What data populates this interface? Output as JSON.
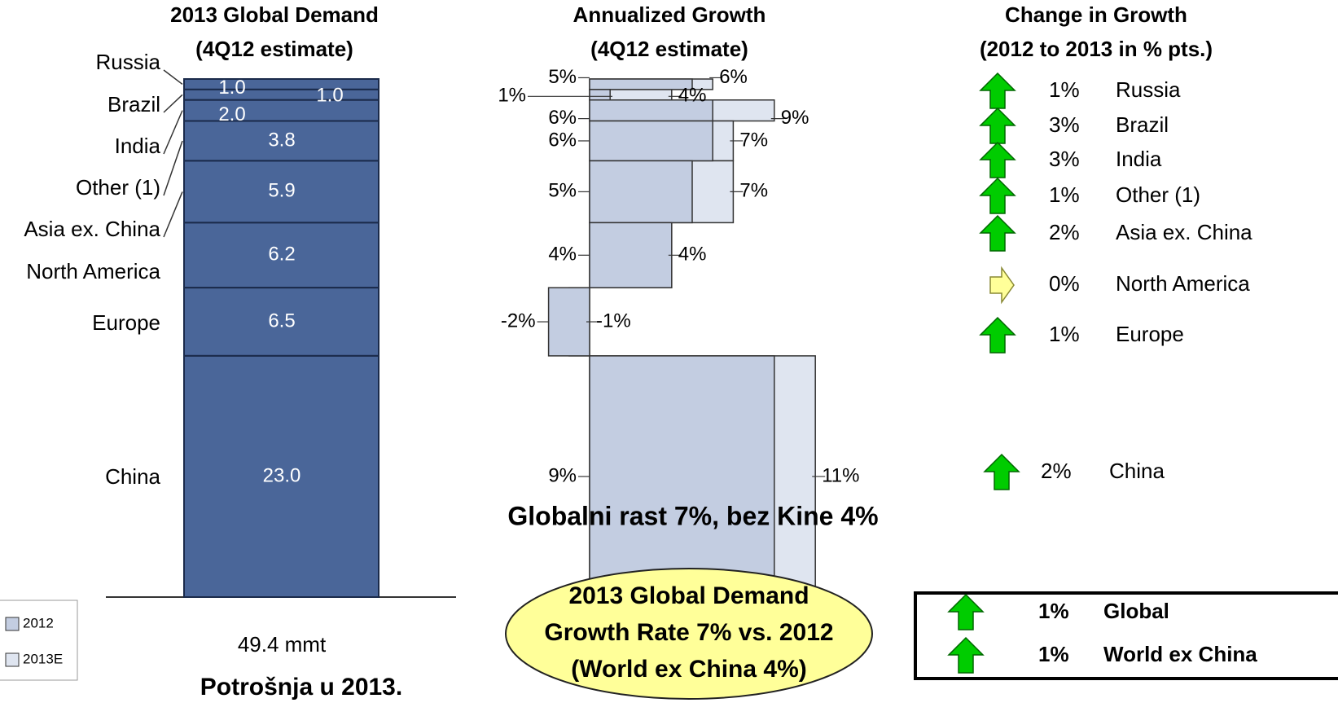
{
  "chart_data": [
    {
      "type": "stacked_bar",
      "title": "2013 Global Demand",
      "subtitle": "(4Q12 estimate)",
      "categories": [
        "Russia",
        "Brazil",
        "India",
        "Other (1)",
        "Asia ex. China",
        "North America",
        "Europe",
        "China"
      ],
      "values": [
        1,
        1,
        2,
        3.8,
        5.9,
        6.2,
        6.5,
        23
      ],
      "value_labels": [
        "1.0",
        "1.0",
        "2.0",
        "3.8",
        "5.9",
        "6.2",
        "6.5",
        "23.0"
      ],
      "color": "#4a6699",
      "total_label": "49.4 mmt",
      "caption": "Potrošnja u 2013."
    },
    {
      "type": "growth_bar",
      "title": "Annualized Growth",
      "subtitle": "(4Q12 estimate)",
      "categories": [
        "Russia",
        "Brazil",
        "India",
        "Other (1)",
        "Asia ex. China",
        "North America",
        "Europe",
        "China"
      ],
      "series": [
        {
          "name": "2012",
          "color": "#c3cde1",
          "values": [
            5,
            1,
            6,
            6,
            5,
            4,
            -2,
            9
          ],
          "value_labels": [
            "5%",
            "1%",
            "6%",
            "6%",
            "5%",
            "4%",
            "-2%",
            "9%"
          ]
        },
        {
          "name": "2013E",
          "color": "#dfe5f0",
          "values": [
            6,
            4,
            9,
            7,
            7,
            4,
            -1,
            11
          ],
          "value_labels": [
            "6%",
            "4%",
            "9%",
            "7%",
            "7%",
            "4%",
            "-1%",
            "11%"
          ]
        }
      ],
      "legend": "lower left",
      "annotation": "Globalni rast 7%, bez Kine 4%",
      "callout": [
        "2013 Global Demand",
        "Growth Rate 7% vs. 2012",
        "(World ex China 4%)"
      ]
    },
    {
      "type": "change",
      "title": "Change in Growth",
      "subtitle": "(2012 to 2013 in % pts.)",
      "categories": [
        "Russia",
        "Brazil",
        "India",
        "Other (1)",
        "Asia ex. China",
        "North America",
        "Europe",
        "China"
      ],
      "values": [
        1,
        3,
        3,
        1,
        2,
        0,
        1,
        2
      ],
      "value_labels": [
        "1%",
        "3%",
        "3%",
        "1%",
        "2%",
        "0%",
        "1%",
        "2%"
      ],
      "totals": {
        "categories": [
          "Global",
          "World ex China"
        ],
        "values": [
          1,
          1
        ],
        "value_labels": [
          "1%",
          "1%"
        ]
      }
    }
  ]
}
